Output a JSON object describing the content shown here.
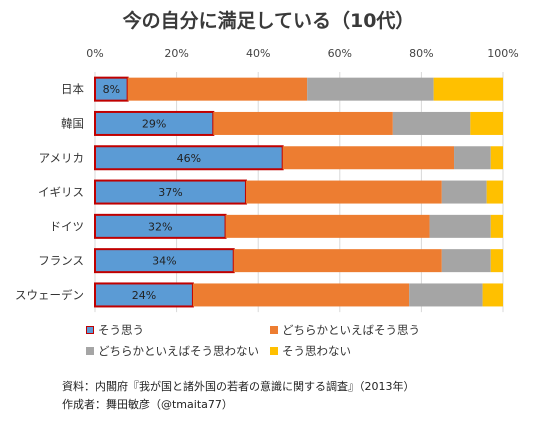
{
  "chart_data": {
    "type": "bar",
    "orientation": "horizontal",
    "stacked": "percent",
    "title": "今の自分に満足している（10代）",
    "categories": [
      "日本",
      "韓国",
      "アメリカ",
      "イギリス",
      "ドイツ",
      "フランス",
      "スウェーデン"
    ],
    "xlim": [
      0,
      100
    ],
    "x_ticks": [
      "0%",
      "20%",
      "40%",
      "60%",
      "80%",
      "100%"
    ],
    "grid": true,
    "legend_position": "bottom",
    "series": [
      {
        "name": "そう思う",
        "color": "#5b9bd5",
        "border": "#c00000",
        "values": [
          8,
          29,
          46,
          37,
          32,
          34,
          24
        ],
        "labels": [
          "8%",
          "29%",
          "46%",
          "37%",
          "32%",
          "34%",
          "24%"
        ]
      },
      {
        "name": "どちらかといえばそう思う",
        "color": "#ed7d31",
        "values": [
          44,
          44,
          42,
          48,
          50,
          51,
          53
        ]
      },
      {
        "name": "どちらかといえばそう思わない",
        "color": "#a5a5a5",
        "values": [
          31,
          19,
          9,
          11,
          15,
          12,
          18
        ]
      },
      {
        "name": "そう思わない",
        "color": "#ffc000",
        "values": [
          17,
          8,
          3,
          4,
          3,
          3,
          5
        ]
      }
    ]
  },
  "source": {
    "line1": "資料：内閣府『我が国と諸外国の若者の意識に関する調査』（2013年）",
    "line2": "作成者：舞田敏彦（@tmaita77）"
  }
}
